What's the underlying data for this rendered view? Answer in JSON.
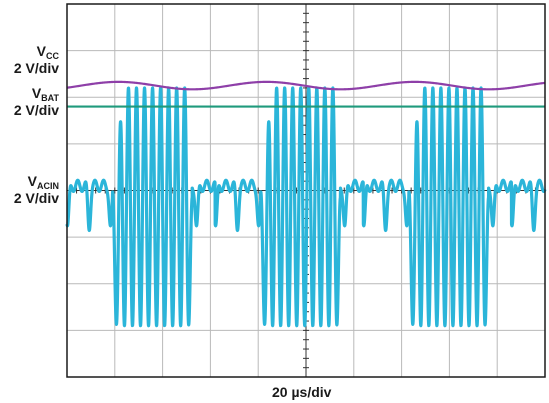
{
  "chart_data": {
    "type": "line",
    "xlabel": "20 µs/div",
    "grid": true,
    "divisions": {
      "x": 10,
      "y": 8
    },
    "xlim_div": [
      0,
      10
    ],
    "ylim_div": [
      -4,
      4
    ],
    "channels": [
      {
        "name_main": "V",
        "name_sub": "CC",
        "scale": "2 V/div",
        "color": "#8e3fa8",
        "description": "upper supply rail with slow ripple",
        "period_div": 3.1,
        "level_div": 2.25,
        "ripple_div": 0.08
      },
      {
        "name_main": "V",
        "name_sub": "BAT",
        "scale": "2 V/div",
        "color": "#1f9a7c",
        "description": "flat battery rail",
        "level_div": 1.8
      },
      {
        "name_main": "V",
        "name_sub": "ACIN",
        "scale": "2 V/div",
        "color": "#2bb5d9",
        "description": "AC input bursts: high-frequency oscillation gated by the supply ripple",
        "period_div": 3.1,
        "burst_start_div": 0.95,
        "burst_end_div": 2.62,
        "osc_period_div": 0.168,
        "high_div": 2.2,
        "low_div": -2.9,
        "idle_div": 0.1
      }
    ]
  },
  "labels": {
    "vcc_main": "V",
    "vcc_sub": "CC",
    "vcc_scale": "2 V/div",
    "vbat_main": "V",
    "vbat_sub": "BAT",
    "vbat_scale": "2 V/div",
    "vacin_main": "V",
    "vacin_sub": "ACIN",
    "vacin_scale": "2 V/div",
    "xlabel": "20 µs/div"
  },
  "colors": {
    "grid": "#b9b9b9",
    "axis": "#333333",
    "frame": "#1a1a1a"
  }
}
